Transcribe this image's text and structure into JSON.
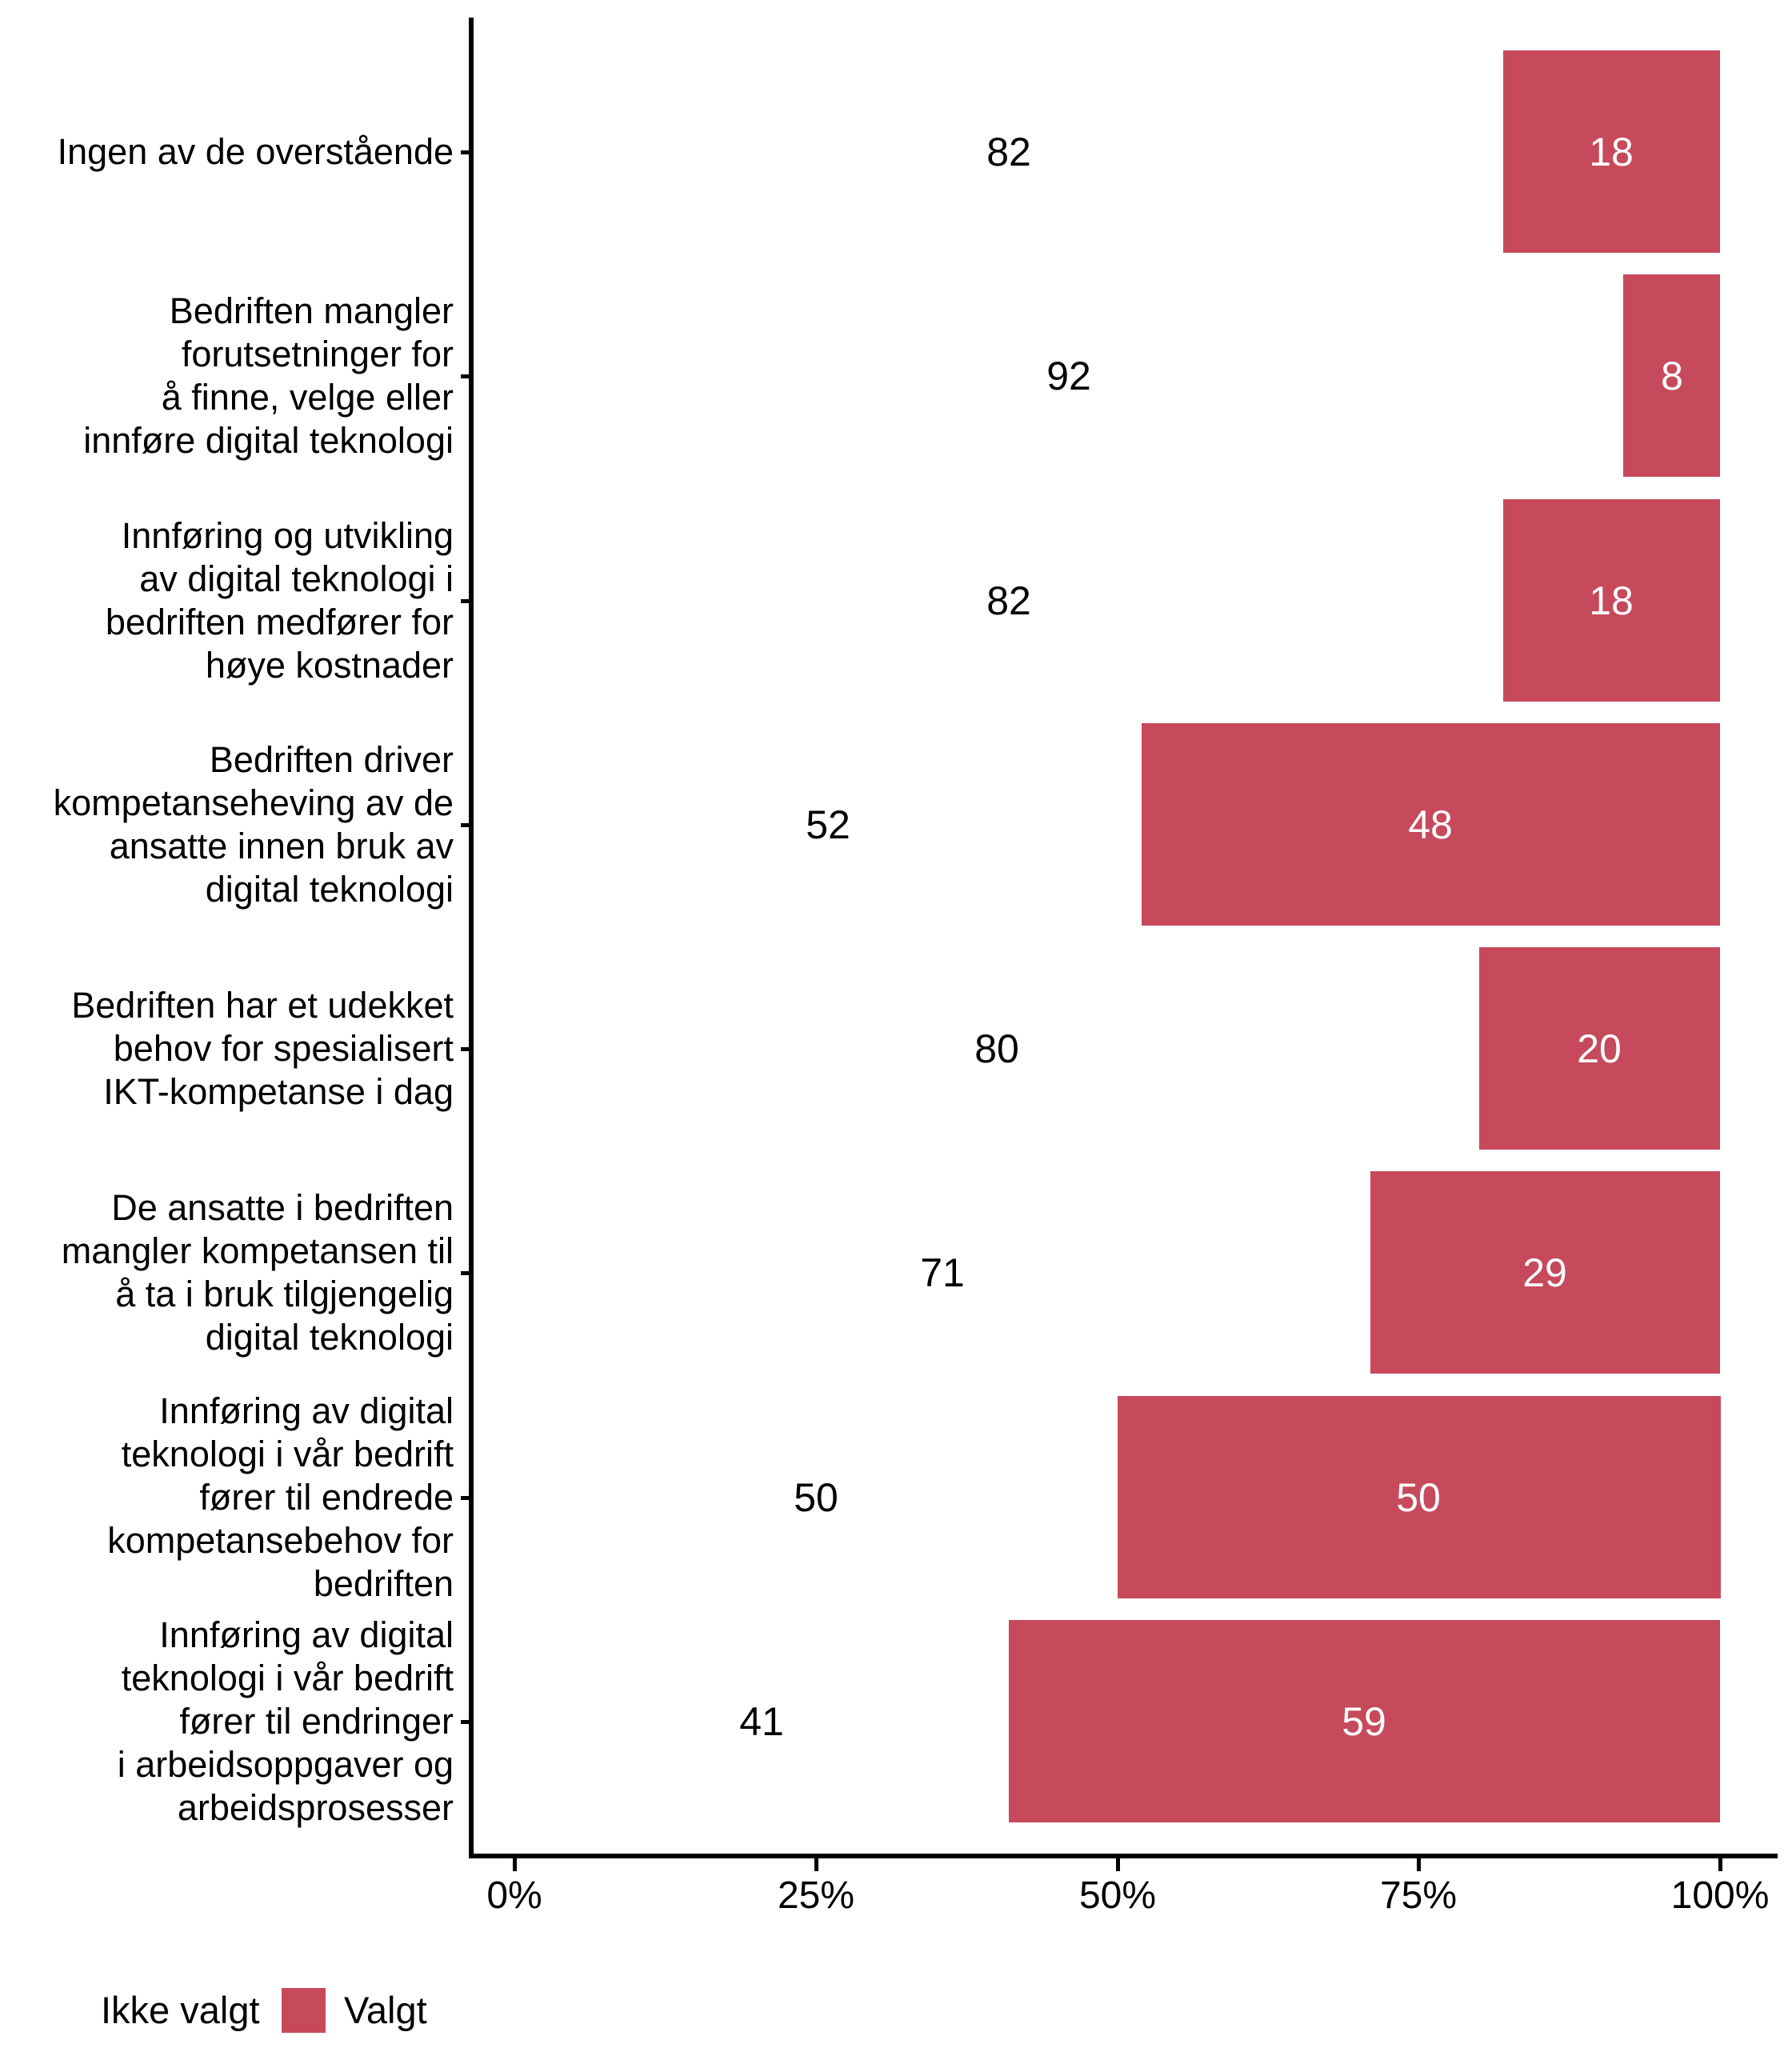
{
  "chart_data": {
    "type": "bar",
    "orientation": "horizontal",
    "stacked": true,
    "unit": "percent",
    "title": "",
    "xlabel": "",
    "ylabel": "",
    "xlim": [
      0,
      100
    ],
    "x_ticks": [
      "0%",
      "25%",
      "50%",
      "75%",
      "100%"
    ],
    "grid": false,
    "legend_position": "bottom-left",
    "categories": [
      "Ingen av de overstående",
      "Bedriften mangler\nforutsetninger for\nå finne, velge eller\ninnføre digital teknologi",
      "Innføring og utvikling\nav digital teknologi i\nbedriften medfører for\nhøye kostnader",
      "Bedriften driver\nkompetanseheving av de\nansatte innen bruk av\ndigital teknologi",
      "Bedriften har et udekket\nbehov for spesialisert\nIKT-kompetanse i dag",
      "De ansatte i bedriften\nmangler kompetansen til\nå ta i bruk tilgjengelig\ndigital teknologi",
      "Innføring av digital\nteknologi i vår bedrift\nfører til endrede\nkompetansebehov for\nbedriften",
      "Innføring av digital\nteknologi i vår bedrift\nfører til endringer\ni arbeidsoppgaver og\narbeidsprosesser"
    ],
    "series": [
      {
        "name": "Ikke valgt",
        "color": "#FFFFFF",
        "values": [
          82,
          92,
          82,
          52,
          80,
          71,
          50,
          41
        ]
      },
      {
        "name": "Valgt",
        "color": "#C64A5B",
        "values": [
          18,
          8,
          18,
          48,
          20,
          29,
          50,
          59
        ]
      }
    ]
  }
}
